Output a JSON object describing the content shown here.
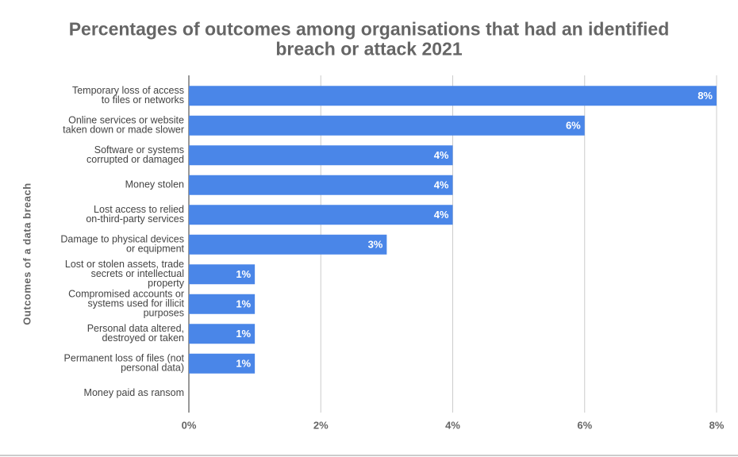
{
  "chart_data": {
    "type": "bar",
    "orientation": "horizontal",
    "title": "Percentages of outcomes among organisations that had an identified\nbreach or attack 2021",
    "y_axis_label": "Outcomes of a data breach",
    "categories": [
      "Temporary loss of access\nto files or networks",
      "Online services or website\ntaken down or made slower",
      "Software or systems\ncorrupted or damaged",
      "Money stolen",
      "Lost access to relied\non-third-party services",
      "Damage to physical devices\nor equipment",
      "Lost or stolen assets, trade\nsecrets or intellectual\nproperty",
      "Compromised accounts or\nsystems used for illicit\npurposes",
      "Personal data altered,\ndestroyed or taken",
      "Permanent loss of files (not\npersonal data)",
      "Money paid as ransom"
    ],
    "values": [
      8,
      6,
      4,
      4,
      4,
      3,
      1,
      1,
      1,
      1,
      0
    ],
    "value_labels": [
      "8%",
      "6%",
      "4%",
      "4%",
      "4%",
      "3%",
      "1%",
      "1%",
      "1%",
      "1%",
      null
    ],
    "color": "#4a86e8",
    "xlim": [
      0,
      8
    ],
    "xticks": [
      {
        "value": 0,
        "label": "0%"
      },
      {
        "value": 2,
        "label": "2%"
      },
      {
        "value": 4,
        "label": "4%"
      },
      {
        "value": 6,
        "label": "6%"
      },
      {
        "value": 8,
        "label": "8%"
      }
    ],
    "grid": true
  }
}
